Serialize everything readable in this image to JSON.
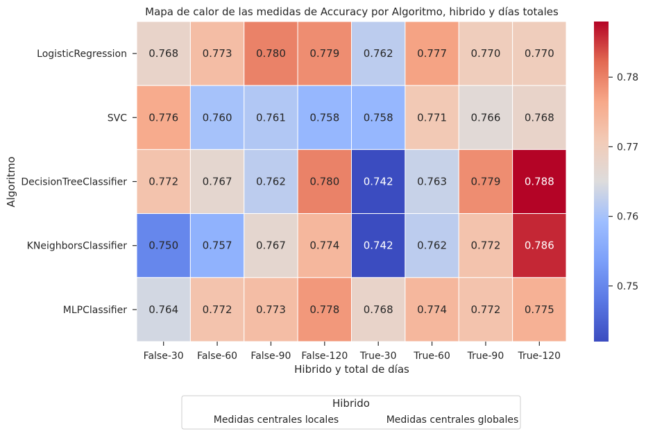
{
  "chart_data": {
    "type": "heatmap",
    "title": "Mapa de calor de las medidas de Accuracy por Algoritmo, hibrido y días totales",
    "xlabel": "Hibrido y total de días",
    "ylabel": "Algoritmo",
    "x_categories": [
      "False-30",
      "False-60",
      "False-90",
      "False-120",
      "True-30",
      "True-60",
      "True-90",
      "True-120"
    ],
    "y_categories": [
      "LogisticRegression",
      "SVC",
      "DecisionTreeClassifier",
      "KNeighborsClassifier",
      "MLPClassifier"
    ],
    "values": [
      [
        0.768,
        0.773,
        0.78,
        0.779,
        0.762,
        0.777,
        0.77,
        0.77
      ],
      [
        0.776,
        0.76,
        0.761,
        0.758,
        0.758,
        0.771,
        0.766,
        0.768
      ],
      [
        0.772,
        0.767,
        0.762,
        0.78,
        0.742,
        0.763,
        0.779,
        0.788
      ],
      [
        0.75,
        0.757,
        0.767,
        0.774,
        0.742,
        0.762,
        0.772,
        0.786
      ],
      [
        0.764,
        0.772,
        0.773,
        0.778,
        0.768,
        0.774,
        0.772,
        0.775
      ]
    ],
    "value_format_decimals": 3,
    "colormap": "coolwarm",
    "vmin": 0.742,
    "vmax": 0.788,
    "colorbar_ticks": [
      0.75,
      0.76,
      0.77,
      0.78
    ],
    "colorbar_tick_labels": [
      "0.75",
      "0.76",
      "0.77",
      "0.78"
    ],
    "grid_lines_color": "#ffffff",
    "legend": {
      "title": "Hibrido",
      "placement": "bottom-center",
      "entries": [
        "Medidas centrales locales",
        "Medidas centrales globales"
      ]
    }
  }
}
